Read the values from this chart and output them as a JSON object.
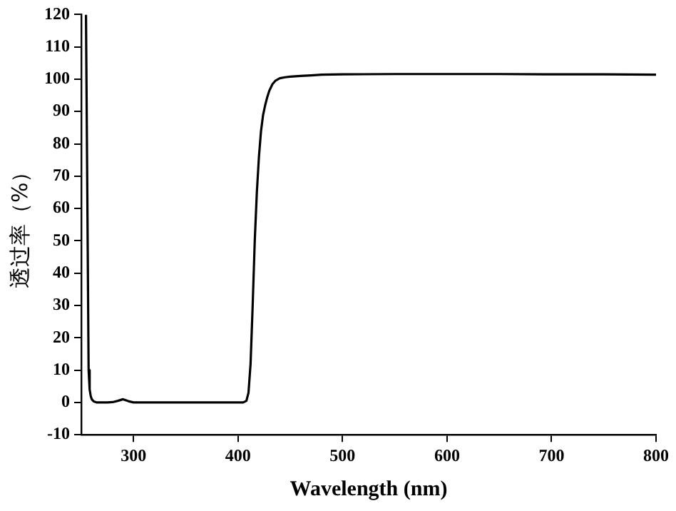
{
  "chart_data": {
    "type": "line",
    "xlabel": "Wavelength (nm)",
    "ylabel": "透过率（%）",
    "xlim": [
      250,
      800
    ],
    "xticks": [
      300,
      400,
      500,
      600,
      700,
      800
    ],
    "ylim": [
      -10,
      120
    ],
    "yticks": [
      -10,
      0,
      10,
      20,
      30,
      40,
      50,
      60,
      70,
      80,
      90,
      100,
      110,
      120
    ],
    "grid": false,
    "legend": false,
    "marker": "none",
    "line_style": "solid",
    "series": [
      {
        "color": "#000000",
        "x": [
          254.5,
          257,
          258,
          259,
          260,
          262,
          265,
          270,
          275,
          280,
          285,
          290,
          295,
          300,
          310,
          350,
          400,
          405,
          408,
          410,
          412,
          414,
          416,
          418,
          420,
          422,
          424,
          426,
          428,
          430,
          433,
          436,
          440,
          445,
          450,
          460,
          470,
          480,
          500,
          550,
          600,
          650,
          700,
          750,
          800
        ],
        "values": [
          120,
          10,
          4,
          2,
          1,
          0.3,
          0,
          0,
          0,
          0.1,
          0.5,
          1,
          0.4,
          0,
          0,
          0,
          0,
          0,
          0.5,
          3,
          12,
          30,
          50,
          65,
          76,
          84,
          89,
          92,
          94.5,
          96.5,
          98.5,
          99.6,
          100.3,
          100.6,
          100.8,
          101,
          101.2,
          101.4,
          101.5,
          101.6,
          101.6,
          101.6,
          101.5,
          101.5,
          101.4
        ]
      }
    ]
  }
}
